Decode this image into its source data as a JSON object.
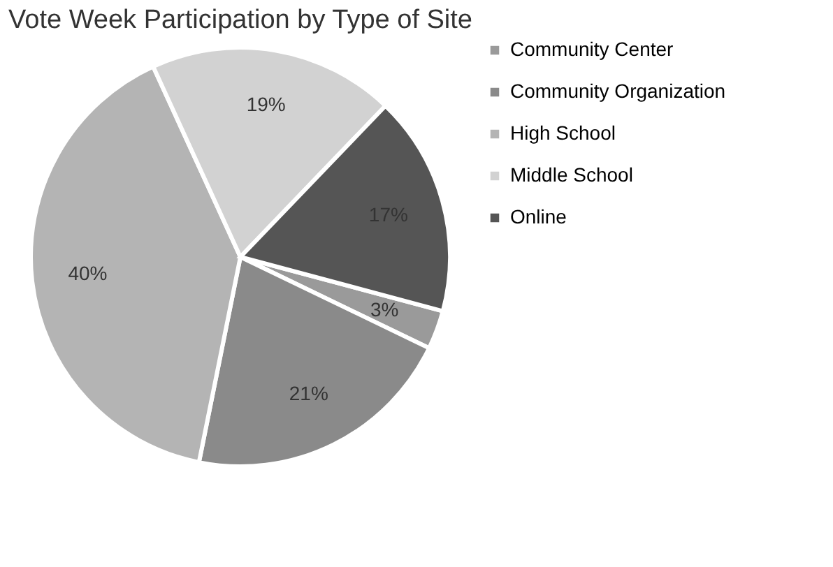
{
  "chart_data": {
    "type": "pie",
    "title": "Vote Week Participation by Type of Site",
    "categories": [
      "Community Center",
      "Community Organization",
      "High School",
      "Middle School",
      "Online"
    ],
    "values": [
      3,
      21,
      40,
      19,
      17
    ],
    "colors": [
      "#9a9a9a",
      "#8a8a8a",
      "#b4b4b4",
      "#d2d2d2",
      "#555555"
    ],
    "value_labels": [
      "3%",
      "21%",
      "40%",
      "19%",
      "17%"
    ],
    "legend": "right"
  }
}
